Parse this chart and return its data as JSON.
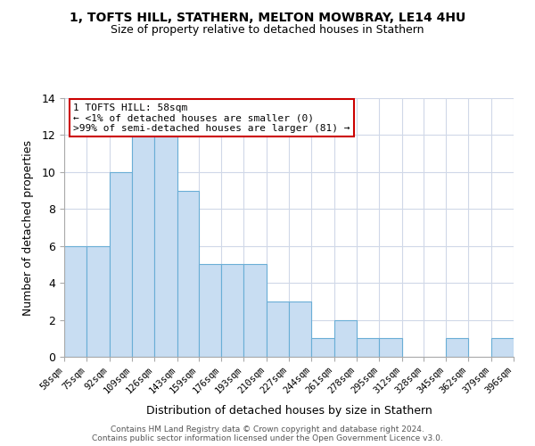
{
  "title1": "1, TOFTS HILL, STATHERN, MELTON MOWBRAY, LE14 4HU",
  "title2": "Size of property relative to detached houses in Stathern",
  "xlabel": "Distribution of detached houses by size in Stathern",
  "ylabel": "Number of detached properties",
  "bin_labels": [
    "58sqm",
    "75sqm",
    "92sqm",
    "109sqm",
    "126sqm",
    "143sqm",
    "159sqm",
    "176sqm",
    "193sqm",
    "210sqm",
    "227sqm",
    "244sqm",
    "261sqm",
    "278sqm",
    "295sqm",
    "312sqm",
    "328sqm",
    "345sqm",
    "362sqm",
    "379sqm",
    "396sqm"
  ],
  "bar_heights": [
    6,
    6,
    10,
    12,
    12,
    9,
    5,
    5,
    5,
    3,
    3,
    1,
    2,
    1,
    1,
    0,
    0,
    1,
    0,
    1
  ],
  "bin_edges": [
    58,
    75,
    92,
    109,
    126,
    143,
    159,
    176,
    193,
    210,
    227,
    244,
    261,
    278,
    295,
    312,
    328,
    345,
    362,
    379,
    396
  ],
  "bar_color": "#c8ddf2",
  "bar_edge_color": "#6aaed6",
  "annotation_title": "1 TOFTS HILL: 58sqm",
  "annotation_line1": "← <1% of detached houses are smaller (0)",
  "annotation_line2": ">99% of semi-detached houses are larger (81) →",
  "annotation_box_color": "#ffffff",
  "annotation_box_edge": "#cc0000",
  "ylim": [
    0,
    14
  ],
  "yticks": [
    0,
    2,
    4,
    6,
    8,
    10,
    12,
    14
  ],
  "footer1": "Contains HM Land Registry data © Crown copyright and database right 2024.",
  "footer2": "Contains public sector information licensed under the Open Government Licence v3.0.",
  "background_color": "#ffffff",
  "grid_color": "#d0d8e8"
}
